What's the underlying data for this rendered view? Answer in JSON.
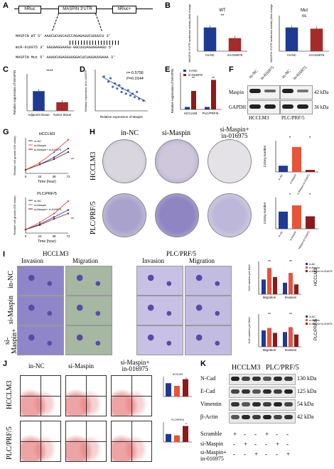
{
  "panels": {
    "A": "A",
    "B": "B",
    "C": "C",
    "D": "D",
    "E": "E",
    "F": "F",
    "G": "G",
    "H": "H",
    "I": "I",
    "J": "J",
    "K": "K"
  },
  "A": {
    "construct_left": "hRluc",
    "construct_mid": "MASPIN 3'UTR",
    "construct_right": "hRluc+",
    "wt_label": "MASPIN WT",
    "wt_seq": "5' AAACUCUGCAUCCAGAGAUUCUUUUCU 3'",
    "mir_label": "miR-016975",
    "mir_seq": "3' GGUAAGGAAGU-GGCUUUAGUGGAAGU 5'",
    "mut_label": "MASPIN Mut",
    "mut_seq": "5' AAAUCUGAGGUUGGACUCUAGAUUGAAA 3'"
  },
  "B": {
    "left_title": "WT",
    "right_title": "Mut",
    "left_ylabel": "MASPIN 3'UTR luciferase activity (fold change)",
    "right_ylabel": "MASPIN 3'UTR luciferase activity (fold change)",
    "sig_left": "**",
    "sig_right": "ns",
    "categories": [
      "mi-NC",
      "mi-016975"
    ]
  },
  "C": {
    "ylabel": "Relative expression of MASPIN",
    "sig": "****",
    "categories": [
      "Adjacent tissue",
      "Tumor tissue"
    ]
  },
  "D": {
    "r": "r=-0.5756",
    "p": "P=0.0144",
    "xlabel": "Relative expression of Maspin",
    "ylabel": "Relative expression of in-016975"
  },
  "E": {
    "ylabel": "Relative expression of MASPIN",
    "legend": [
      "in-NC",
      "in-016975"
    ],
    "groups": [
      "HCCLM3",
      "PLC/PRF/5"
    ],
    "sig": "**"
  },
  "F": {
    "col_labels": [
      "in-NC",
      "in-016975",
      "in-NC",
      "in-016975"
    ],
    "rows": [
      "Maspin",
      "GAPDH"
    ],
    "kda": [
      "42 kDa",
      "36 kDa"
    ],
    "cells": [
      "HCCLM3",
      "PLC/PRF/5"
    ]
  },
  "G": {
    "titles": [
      "HCCLM3",
      "PLC/PRF/5"
    ],
    "legend": [
      "in-NC",
      "si-Maspin",
      "si-Maspin+ in-016975"
    ],
    "xlabel": "Time (hour)",
    "ylabel": "Relative cell growth (OD value)",
    "sig": "**"
  },
  "H": {
    "col_labels": [
      "in-NC",
      "si-Maspin",
      "si-Maspin+",
      "in-016975"
    ],
    "rows": [
      "HCCLM3",
      "PLC/PRF/5"
    ],
    "ylabel": "Colony number",
    "cats": [
      "in-NC",
      "si-Maspin",
      "si-Maspin+in-016975"
    ],
    "sig": "*"
  },
  "I": {
    "cell_titles": [
      "HCCLM3",
      "PLC/PRF/5"
    ],
    "sub_titles": [
      "Invasion",
      "Migration",
      "Invasion",
      "Migration"
    ],
    "rows": [
      "in-NC",
      "si-Maspin",
      "si-Maspin+",
      "in-016975"
    ],
    "chart_titles": [
      "HCCLM3",
      "PLC/PRF/5"
    ],
    "legend": [
      "in-NC",
      "si-Maspin",
      "si-Maspin+in-016975"
    ],
    "groups": [
      "Migration",
      "Invasion"
    ],
    "ylabel": "Cell number per field",
    "sig": "**"
  },
  "J": {
    "col_labels": [
      "in-NC",
      "si-Maspin",
      "si-Maspin+",
      "in-016975"
    ],
    "rows": [
      "HCCLM3",
      "PLC/PRF/5"
    ],
    "chart_titles": [
      "HCCLM3",
      "PLC/PRF/5"
    ],
    "sig": "**"
  },
  "K": {
    "cells": [
      "HCCLM3",
      "PLC/PRF/5"
    ],
    "rows": [
      "N-Cad",
      "E-Cad",
      "Vimentin",
      "β-Actin"
    ],
    "kda": [
      "130 kDa",
      "125 kDa",
      "54 kDa",
      "42 kDa"
    ],
    "conds": [
      "Scramble",
      "si-Maspin",
      "si-Maspin+",
      "in-016975"
    ],
    "plus": "+",
    "minus": "-"
  },
  "chart_data": [
    {
      "type": "bar",
      "panel": "B-WT",
      "categories": [
        "mi-NC",
        "mi-016975"
      ],
      "values": [
        1.0,
        0.55
      ],
      "title": "WT",
      "ylim": [
        0,
        1.5
      ],
      "colors": [
        "#1f3a93",
        "#a52a2a"
      ]
    },
    {
      "type": "bar",
      "panel": "B-Mut",
      "categories": [
        "mi-NC",
        "mi-016975"
      ],
      "values": [
        1.0,
        0.95
      ],
      "title": "Mut",
      "ylim": [
        0,
        1.5
      ],
      "colors": [
        "#1f3a93",
        "#a52a2a"
      ]
    },
    {
      "type": "bar",
      "panel": "C",
      "categories": [
        "Adjacent tissue",
        "Tumor tissue"
      ],
      "values": [
        1.6,
        0.7
      ],
      "ylim": [
        0,
        3
      ],
      "colors": [
        "#1f3a93",
        "#a52a2a"
      ]
    },
    {
      "type": "scatter",
      "panel": "D",
      "x": [
        0.2,
        0.3,
        0.35,
        0.4,
        0.45,
        0.5,
        0.55,
        0.6,
        0.62,
        0.7,
        0.75,
        0.8,
        0.85,
        0.9,
        0.95,
        1.0,
        1.1
      ],
      "y": [
        2.0,
        1.7,
        1.9,
        1.4,
        1.6,
        1.3,
        1.5,
        1.1,
        1.3,
        1.0,
        1.2,
        0.9,
        1.0,
        0.8,
        1.1,
        0.7,
        0.6
      ]
    },
    {
      "type": "bar",
      "panel": "E",
      "categories": [
        "HCCLM3",
        "PLC/PRF/5"
      ],
      "series": [
        {
          "name": "in-NC",
          "values": [
            1.0,
            1.0
          ]
        },
        {
          "name": "in-016975",
          "values": [
            7.5,
            12.0
          ]
        }
      ],
      "ylim": [
        0,
        15
      ]
    },
    {
      "type": "line",
      "panel": "G-HCCLM3",
      "x": [
        0,
        24,
        48,
        72
      ],
      "series": [
        {
          "name": "in-NC",
          "values": [
            0.2,
            0.5,
            0.9,
            1.4
          ]
        },
        {
          "name": "si-Maspin",
          "values": [
            0.2,
            0.6,
            1.2,
            1.9
          ]
        },
        {
          "name": "si-Maspin+ in-016975",
          "values": [
            0.2,
            0.5,
            0.8,
            1.2
          ]
        }
      ],
      "xlabel": "Time (hour)"
    },
    {
      "type": "line",
      "panel": "G-PLC/PRF/5",
      "x": [
        0,
        24,
        48,
        72
      ],
      "series": [
        {
          "name": "in-NC",
          "values": [
            0.2,
            0.5,
            0.9,
            1.3
          ]
        },
        {
          "name": "si-Maspin",
          "values": [
            0.2,
            0.6,
            1.1,
            1.8
          ]
        },
        {
          "name": "si-Maspin+ in-016975",
          "values": [
            0.2,
            0.45,
            0.8,
            1.1
          ]
        }
      ],
      "xlabel": "Time (hour)"
    },
    {
      "type": "bar",
      "panel": "H-HCCLM3",
      "categories": [
        "in-NC",
        "si-Maspin",
        "si-Maspin+in-016975"
      ],
      "values": [
        120,
        480,
        40
      ],
      "ylim": [
        0,
        600
      ],
      "colors": [
        "#1f3a93",
        "#e8533a",
        "#8b1a1a"
      ]
    },
    {
      "type": "bar",
      "panel": "H-PLC/PRF/5",
      "categories": [
        "in-NC",
        "si-Maspin",
        "si-Maspin+in-016975"
      ],
      "values": [
        220,
        300,
        160
      ],
      "ylim": [
        0,
        400
      ],
      "colors": [
        "#1f3a93",
        "#e8533a",
        "#8b1a1a"
      ]
    },
    {
      "type": "bar",
      "panel": "I-HCCLM3",
      "categories": [
        "Migration",
        "Invasion"
      ],
      "series": [
        {
          "name": "in-NC",
          "values": [
            180,
            140
          ]
        },
        {
          "name": "si-Maspin",
          "values": [
            320,
            260
          ]
        },
        {
          "name": "si-Maspin+in-016975",
          "values": [
            210,
            120
          ]
        }
      ]
    },
    {
      "type": "bar",
      "panel": "I-PLC/PRF/5",
      "categories": [
        "Migration",
        "Invasion"
      ],
      "series": [
        {
          "name": "in-NC",
          "values": [
            200,
            180
          ]
        },
        {
          "name": "si-Maspin",
          "values": [
            230,
            240
          ]
        },
        {
          "name": "si-Maspin+in-016975",
          "values": [
            170,
            150
          ]
        }
      ]
    },
    {
      "type": "bar",
      "panel": "J-HCCLM3",
      "categories": [
        "in-NC",
        "si-Maspin",
        "si-Maspin+in-016975"
      ],
      "values": [
        10,
        8,
        13
      ]
    },
    {
      "type": "bar",
      "panel": "J-PLC/PRF/5",
      "categories": [
        "in-NC",
        "si-Maspin",
        "si-Maspin+in-016975"
      ],
      "values": [
        6,
        5,
        12
      ]
    }
  ]
}
